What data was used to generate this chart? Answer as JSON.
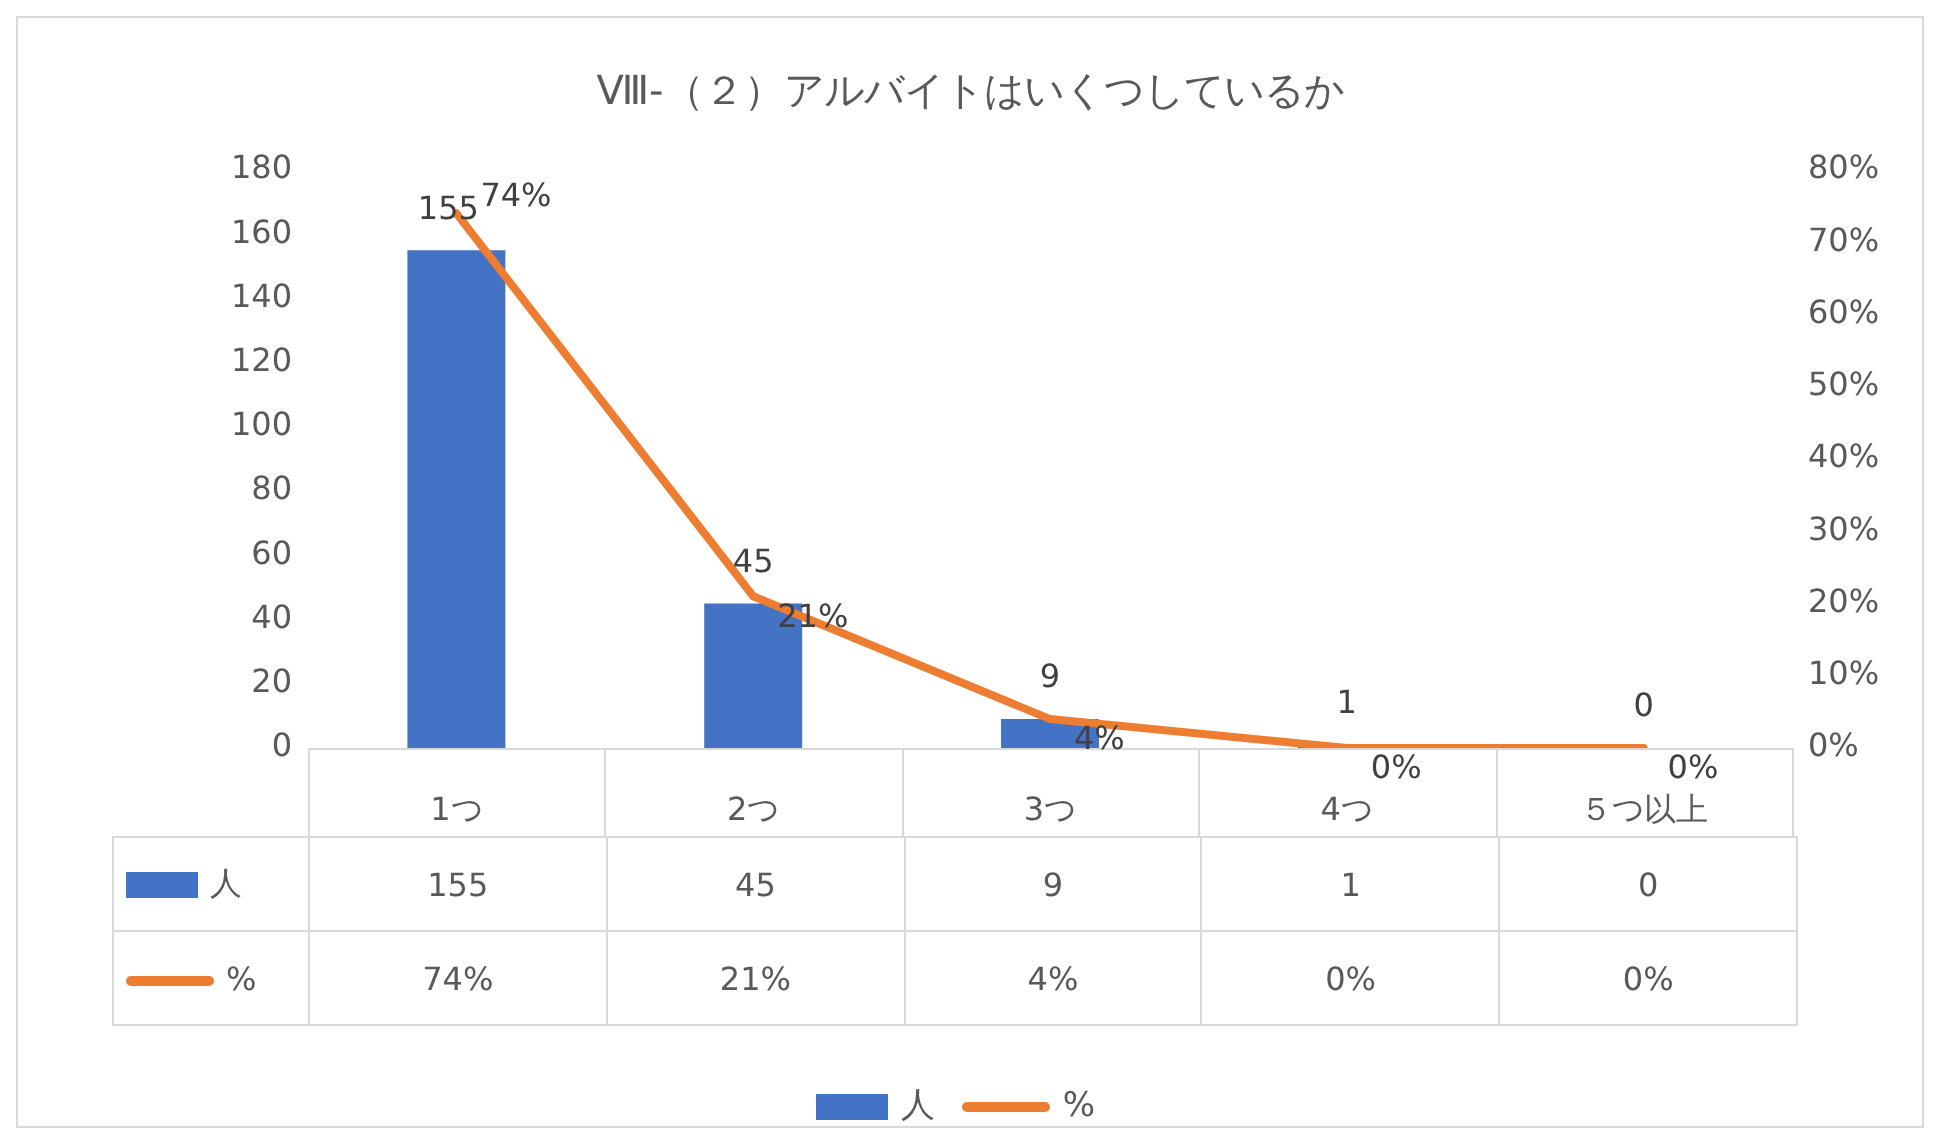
{
  "chart_data": {
    "type": "bar",
    "title": "Ⅷ-（２）アルバイトはいくつしているか",
    "categories": [
      "1つ",
      "2つ",
      "3つ",
      "4つ",
      "５つ以上"
    ],
    "series": [
      {
        "name": "人",
        "color": "#4472c4",
        "values": [
          155,
          45,
          9,
          1,
          0
        ],
        "value_labels": [
          "155",
          "45",
          "9",
          "1",
          "0"
        ]
      },
      {
        "name": "%",
        "type": "line",
        "axis": "y2",
        "color": "#ed7d31",
        "values": [
          74,
          21,
          4,
          0,
          0
        ],
        "value_labels": [
          "74%",
          "21%",
          "4%",
          "0%",
          "0%"
        ]
      }
    ],
    "ylim": [
      0,
      180
    ],
    "yticks": [
      0,
      20,
      40,
      60,
      80,
      100,
      120,
      140,
      160,
      180
    ],
    "y2lim": [
      0,
      80
    ],
    "y2ticks": [
      {
        "value": 0,
        "label": "0%"
      },
      {
        "value": 10,
        "label": "10%"
      },
      {
        "value": 20,
        "label": "20%"
      },
      {
        "value": 30,
        "label": "30%"
      },
      {
        "value": 40,
        "label": "40%"
      },
      {
        "value": 50,
        "label": "50%"
      },
      {
        "value": 60,
        "label": "60%"
      },
      {
        "value": 70,
        "label": "70%"
      },
      {
        "value": 80,
        "label": "80%"
      }
    ],
    "grid": false,
    "legend": "bottom",
    "marker": "none",
    "line_style": "solid"
  }
}
